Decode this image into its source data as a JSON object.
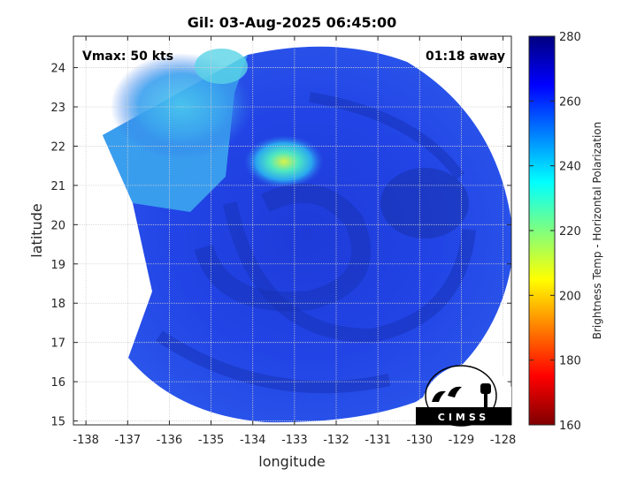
{
  "title": "Gil: 03-Aug-2025 06:45:00",
  "annotations": {
    "vmax": "Vmax: 50 kts",
    "time_away": "01:18 away"
  },
  "axes": {
    "xlabel": "longitude",
    "ylabel": "latitude",
    "x_ticks": [
      "-138",
      "-137",
      "-136",
      "-135",
      "-134",
      "-133",
      "-132",
      "-131",
      "-130",
      "-129",
      "-128"
    ],
    "y_ticks": [
      "15",
      "16",
      "17",
      "18",
      "19",
      "20",
      "21",
      "22",
      "23",
      "24"
    ],
    "xlim": [
      -138.3,
      -127.8
    ],
    "ylim": [
      14.9,
      24.8
    ],
    "grid": true
  },
  "colorbar": {
    "label": "Brightness Temp - Horizontal Polarization",
    "ticks": [
      "160",
      "180",
      "200",
      "220",
      "240",
      "260",
      "280"
    ],
    "range": [
      160,
      280
    ],
    "colors": [
      "#7f0000",
      "#ff0000",
      "#ff7f00",
      "#ffff00",
      "#7fff7f",
      "#00ffff",
      "#007fff",
      "#0000ff",
      "#00007f"
    ]
  },
  "logo": {
    "text": "CIMSS"
  }
}
